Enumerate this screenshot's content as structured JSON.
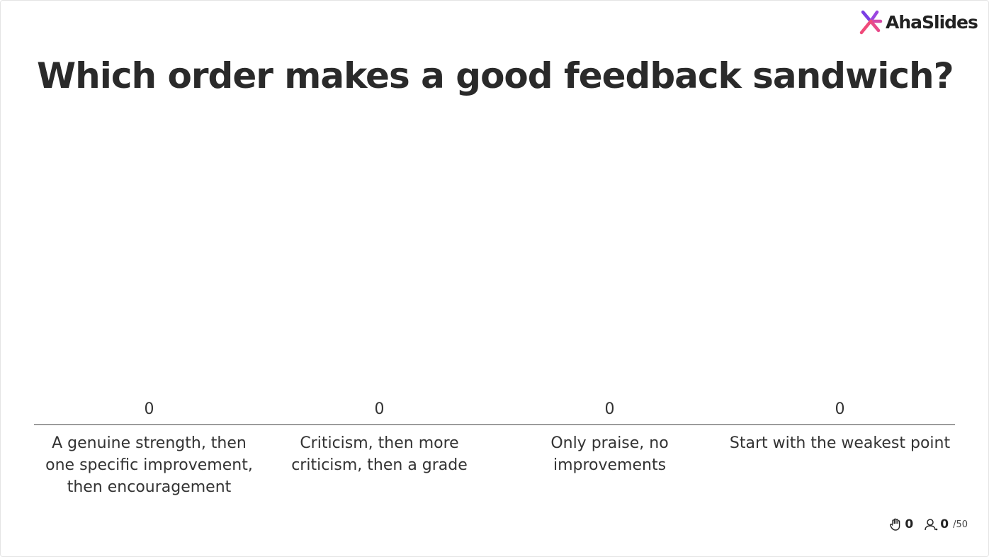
{
  "logo": "AhaSlides",
  "chart_data": {
    "type": "bar",
    "title": "Which order makes a good feedback sandwich?",
    "categories": [
      "A genuine strength, then one specific improvement, then encouragement",
      "Criticism, then more criticism, then a grade",
      "Only praise, no improvements",
      "Start with the weakest point"
    ],
    "values": [
      0,
      0,
      0,
      0
    ],
    "color": "#5a5ad6"
  },
  "footer": {
    "reactions": "0",
    "responses": "0",
    "capacity": "/50"
  }
}
